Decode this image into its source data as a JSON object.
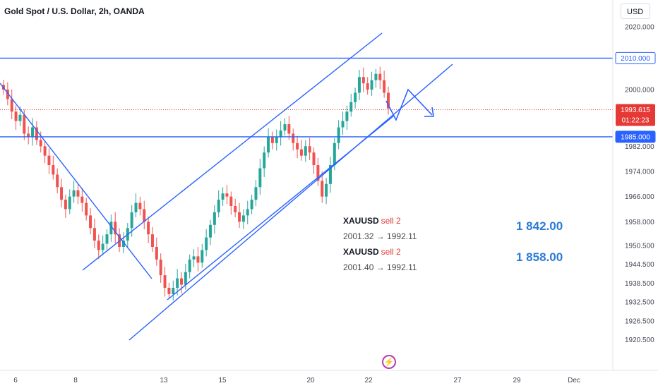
{
  "header": {
    "title": "Gold Spot / U.S. Dollar, 2h, OANDA",
    "currency": "USD"
  },
  "chart_data": {
    "type": "candlestick",
    "symbol": "XAUUSD",
    "timeframe": "2h",
    "ylim": [
      1918,
      2023
    ],
    "y_ticks": [
      "2020.000",
      "2000.000",
      "1982.000",
      "1974.000",
      "1966.000",
      "1958.000",
      "1950.500",
      "1944.500",
      "1938.500",
      "1932.500",
      "1926.500",
      "1920.500"
    ],
    "x_ticks": [
      "6",
      "8",
      "13",
      "15",
      "20",
      "22",
      "27",
      "29",
      "Dec"
    ],
    "price_labels": {
      "resistance": "2010.000",
      "current_price": "1993.615",
      "countdown": "01:22:23",
      "support": "1985.000"
    },
    "horizontal_levels": [
      2010.0,
      1985.0
    ],
    "colors": {
      "up": "#26a69a",
      "down": "#ef5350",
      "lines": "#2962ff",
      "current": "#e53935"
    },
    "candles_close": [
      2000,
      1997,
      1993,
      1990,
      1992,
      1986,
      1985,
      1988,
      1984,
      1982,
      1979,
      1976,
      1973,
      1969,
      1965,
      1962,
      1966,
      1968,
      1966,
      1964,
      1960,
      1956,
      1952,
      1949,
      1951,
      1954,
      1958,
      1954,
      1950,
      1952,
      1956,
      1961,
      1964,
      1962,
      1958,
      1954,
      1950,
      1946,
      1941,
      1937,
      1935,
      1937,
      1940,
      1938,
      1942,
      1946,
      1947,
      1945,
      1949,
      1953,
      1957,
      1961,
      1965,
      1967,
      1966,
      1963,
      1961,
      1958,
      1960,
      1962,
      1965,
      1969,
      1975,
      1980,
      1985,
      1983,
      1985,
      1987,
      1989,
      1986,
      1983,
      1981,
      1979,
      1982,
      1980,
      1976,
      1971,
      1966,
      1970,
      1976,
      1983,
      1988,
      1990,
      1993,
      1996,
      1999,
      2004,
      2002,
      2000,
      2003,
      2005,
      2003,
      1999,
      1994
    ]
  },
  "trades": [
    {
      "symbol": "XAUUSD",
      "action": "sell 2",
      "prices": "2001.32 → 1992.11",
      "profit": "1 842.00"
    },
    {
      "symbol": "XAUUSD",
      "action": "sell 2",
      "prices": "2001.40 → 1992.11",
      "profit": "1 858.00"
    }
  ]
}
